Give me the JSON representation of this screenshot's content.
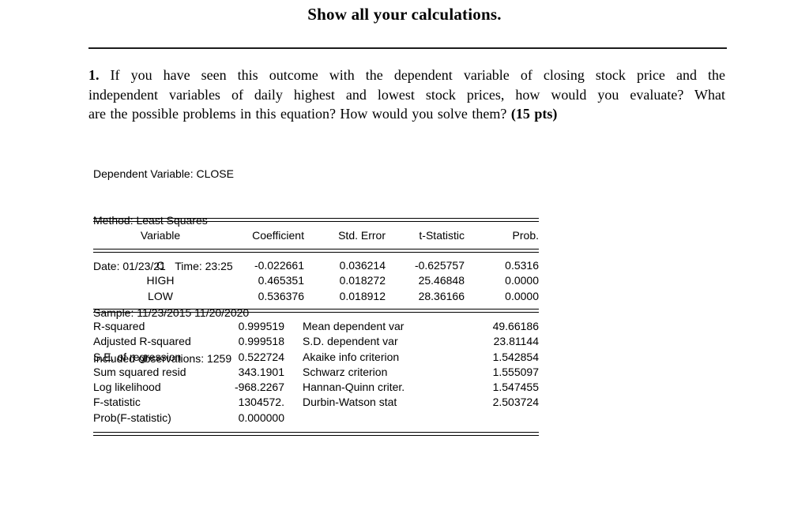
{
  "page": {
    "title": "Show all your calculations."
  },
  "question": {
    "number": "1.",
    "lines": [
      "If you have seen this outcome with the dependent variable of closing stock price and the",
      "independent variables of daily highest and lowest stock prices, how would you evaluate? What",
      "are the possible problems in this equation? How would you solve them?"
    ],
    "points": "(15 pts)"
  },
  "regression": {
    "header_lines": [
      "Dependent Variable: CLOSE",
      "Method: Least Squares",
      "Date: 01/23/21   Time: 23:25",
      "Sample: 11/23/2015 11/20/2020",
      "Included observations: 1259"
    ],
    "columns": [
      "Variable",
      "Coefficient",
      "Std. Error",
      "t-Statistic",
      "Prob."
    ],
    "coefficients": [
      {
        "variable": "C",
        "coefficient": "-0.022661",
        "std_error": "0.036214",
        "t_statistic": "-0.625757",
        "prob": "0.5316"
      },
      {
        "variable": "HIGH",
        "coefficient": "0.465351",
        "std_error": "0.018272",
        "t_statistic": "25.46848",
        "prob": "0.0000"
      },
      {
        "variable": "LOW",
        "coefficient": "0.536376",
        "std_error": "0.018912",
        "t_statistic": "28.36166",
        "prob": "0.0000"
      }
    ],
    "stats": [
      {
        "label": "R-squared",
        "value": "0.999519",
        "label2": "Mean dependent var",
        "value2": "49.66186"
      },
      {
        "label": "Adjusted R-squared",
        "value": "0.999518",
        "label2": "S.D. dependent var",
        "value2": "23.81144"
      },
      {
        "label": "S.E. of regression",
        "value": "0.522724",
        "label2": "Akaike info criterion",
        "value2": "1.542854"
      },
      {
        "label": "Sum squared resid",
        "value": "343.1901",
        "label2": "Schwarz criterion",
        "value2": "1.555097"
      },
      {
        "label": "Log likelihood",
        "value": "-968.2267",
        "label2": "Hannan-Quinn criter.",
        "value2": "1.547455"
      },
      {
        "label": "F-statistic",
        "value": "1304572.",
        "label2": "Durbin-Watson stat",
        "value2": "2.503724"
      },
      {
        "label": "Prob(F-statistic)",
        "value": "0.000000",
        "label2": "",
        "value2": ""
      }
    ]
  }
}
